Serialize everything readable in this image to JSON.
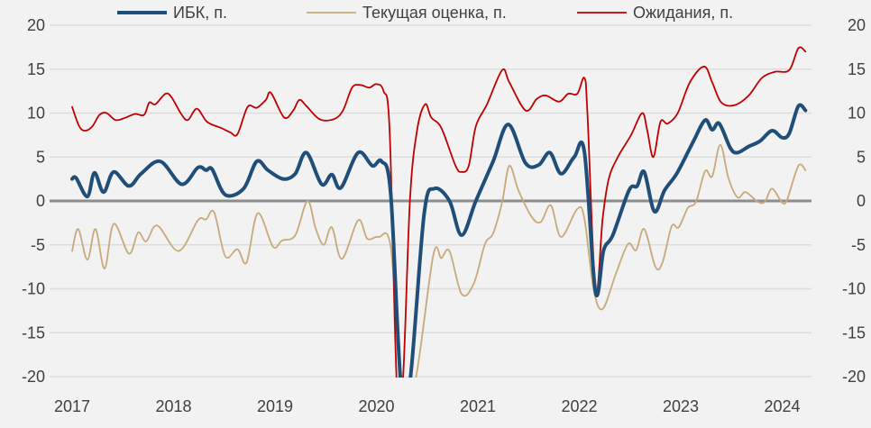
{
  "chart_data": {
    "type": "line",
    "title": "",
    "xlabel": "",
    "ylabel": "",
    "ylim": [
      -20,
      20
    ],
    "xlim": [
      2017,
      2024.3
    ],
    "y_ticks": [
      20,
      15,
      10,
      5,
      0,
      -5,
      -10,
      -15,
      -20
    ],
    "x_ticks": [
      2017,
      2018,
      2019,
      2020,
      2021,
      2022,
      2023,
      2024
    ],
    "grid": true,
    "legend_position": "top",
    "series": [
      {
        "name": "ИБК, п.",
        "color": "#1f4e79",
        "style": "thick",
        "x": [
          2017.0,
          2017.04,
          2017.15,
          2017.22,
          2017.31,
          2017.41,
          2017.56,
          2017.68,
          2017.87,
          2018.08,
          2018.24,
          2018.32,
          2018.38,
          2018.51,
          2018.69,
          2018.82,
          2018.93,
          2019.08,
          2019.2,
          2019.31,
          2019.46,
          2019.56,
          2019.65,
          2019.82,
          2019.96,
          2020.05,
          2020.14,
          2020.24,
          2020.33,
          2020.47,
          2020.57,
          2020.72,
          2020.84,
          2020.98,
          2021.15,
          2021.3,
          2021.47,
          2021.6,
          2021.71,
          2021.82,
          2021.95,
          2022.05,
          2022.16,
          2022.24,
          2022.33,
          2022.49,
          2022.57,
          2022.64,
          2022.74,
          2022.84,
          2022.96,
          2023.09,
          2023.13,
          2023.24,
          2023.31,
          2023.38,
          2023.49,
          2023.56,
          2023.67,
          2023.78,
          2023.9,
          2024.0,
          2024.07,
          2024.16,
          2024.23
        ],
        "y": [
          2.5,
          2.6,
          0.5,
          3.2,
          1.0,
          3.3,
          1.7,
          3.1,
          4.5,
          1.9,
          3.8,
          3.5,
          3.6,
          0.7,
          1.4,
          4.5,
          3.5,
          2.5,
          3.1,
          5.5,
          1.9,
          3.0,
          1.5,
          5.5,
          4.0,
          4.5,
          0.9,
          -30,
          -22,
          -1.5,
          1.4,
          0,
          -3.9,
          0,
          4.5,
          8.7,
          4.3,
          4.1,
          5.5,
          3.1,
          5.0,
          5.6,
          -10.4,
          -5.6,
          -3.9,
          1.2,
          1.7,
          3.3,
          -1.2,
          1.2,
          3.1,
          6.0,
          6.9,
          9.2,
          8.1,
          8.8,
          6.0,
          5.5,
          6.2,
          6.8,
          8.0,
          7.2,
          7.7,
          10.8,
          10.3
        ]
      },
      {
        "name": "Текущая оценка, п.",
        "color": "#c8a97a",
        "style": "thin",
        "x": [
          2017.0,
          2017.06,
          2017.15,
          2017.23,
          2017.32,
          2017.41,
          2017.56,
          2017.65,
          2017.73,
          2017.84,
          2018.05,
          2018.24,
          2018.32,
          2018.4,
          2018.51,
          2018.63,
          2018.72,
          2018.83,
          2018.98,
          2019.07,
          2019.2,
          2019.32,
          2019.4,
          2019.48,
          2019.56,
          2019.66,
          2019.82,
          2019.91,
          2020.02,
          2020.14,
          2020.25,
          2020.38,
          2020.56,
          2020.64,
          2020.72,
          2020.84,
          2020.96,
          2021.07,
          2021.15,
          2021.24,
          2021.31,
          2021.4,
          2021.53,
          2021.62,
          2021.72,
          2021.82,
          2021.98,
          2022.05,
          2022.14,
          2022.23,
          2022.36,
          2022.48,
          2022.56,
          2022.64,
          2022.75,
          2022.82,
          2022.91,
          2022.98,
          2023.07,
          2023.15,
          2023.24,
          2023.31,
          2023.39,
          2023.47,
          2023.56,
          2023.64,
          2023.76,
          2023.83,
          2023.9,
          2024.0,
          2024.05,
          2024.16,
          2024.23
        ],
        "y": [
          -5.7,
          -3.2,
          -6.7,
          -3.2,
          -7.7,
          -2.6,
          -6.0,
          -3.6,
          -4.6,
          -2.8,
          -5.7,
          -2.2,
          -2.1,
          -1.3,
          -6.3,
          -5.5,
          -7.0,
          -1.4,
          -5.2,
          -4.5,
          -3.9,
          0,
          -3.1,
          -5.0,
          -3.0,
          -6.6,
          -2.2,
          -4.3,
          -4.1,
          -5.2,
          -35,
          -25,
          -6.2,
          -6.5,
          -5.7,
          -10.6,
          -9.4,
          -4.9,
          -3.7,
          -0.1,
          4.0,
          1.2,
          -1.8,
          -2.4,
          -0.5,
          -4.1,
          -0.9,
          -2.0,
          -10.0,
          -12.3,
          -8.3,
          -4.9,
          -5.6,
          -3.2,
          -7.5,
          -7.0,
          -2.9,
          -3.0,
          -0.8,
          -0.1,
          3.4,
          2.8,
          6.4,
          2.6,
          0.4,
          1.0,
          -0.1,
          -0.1,
          1.4,
          -0.2,
          0.2,
          4.0,
          3.5
        ]
      },
      {
        "name": "Ожидания, п.",
        "color": "#c00000",
        "style": "thin",
        "x": [
          2017.0,
          2017.07,
          2017.13,
          2017.2,
          2017.27,
          2017.34,
          2017.43,
          2017.53,
          2017.62,
          2017.71,
          2017.76,
          2017.82,
          2017.92,
          2017.98,
          2018.07,
          2018.14,
          2018.23,
          2018.33,
          2018.47,
          2018.56,
          2018.63,
          2018.73,
          2018.82,
          2018.91,
          2018.96,
          2019.09,
          2019.18,
          2019.24,
          2019.31,
          2019.44,
          2019.58,
          2019.67,
          2019.76,
          2019.84,
          2019.93,
          2020.0,
          2020.07,
          2020.13,
          2020.2,
          2020.26,
          2020.33,
          2020.4,
          2020.48,
          2020.54,
          2020.64,
          2020.78,
          2020.84,
          2020.91,
          2020.98,
          2021.09,
          2021.24,
          2021.31,
          2021.47,
          2021.58,
          2021.67,
          2021.8,
          2021.89,
          2021.98,
          2022.05,
          2022.08,
          2022.16,
          2022.23,
          2022.29,
          2022.38,
          2022.51,
          2022.62,
          2022.67,
          2022.73,
          2022.8,
          2022.87,
          2022.97,
          2023.09,
          2023.23,
          2023.31,
          2023.4,
          2023.53,
          2023.67,
          2023.8,
          2023.93,
          2024.07,
          2024.16,
          2024.23
        ],
        "y": [
          10.7,
          8.5,
          8.0,
          8.5,
          9.8,
          10.0,
          9.2,
          9.5,
          9.9,
          9.8,
          11.2,
          11.0,
          12.2,
          11.8,
          10.0,
          9.2,
          10.5,
          9.0,
          8.3,
          7.8,
          7.6,
          10.7,
          10.6,
          11.5,
          12.3,
          9.5,
          10.3,
          11.5,
          10.8,
          9.3,
          9.3,
          10.3,
          12.9,
          13.2,
          12.9,
          13.3,
          12.5,
          8.0,
          -25,
          -25,
          0,
          8,
          11.0,
          9.5,
          8.3,
          4.0,
          3.3,
          4.0,
          8.5,
          11.0,
          14.9,
          13.5,
          10.3,
          11.6,
          12.0,
          11.3,
          12.2,
          12.2,
          14.0,
          10,
          -10.3,
          -2,
          2.5,
          5.0,
          7.5,
          10.0,
          8,
          5.0,
          9.0,
          8.8,
          10.0,
          13.5,
          15.3,
          13.5,
          11.2,
          10.9,
          12.0,
          14.0,
          14.7,
          14.9,
          17.4,
          17.0
        ]
      }
    ]
  }
}
